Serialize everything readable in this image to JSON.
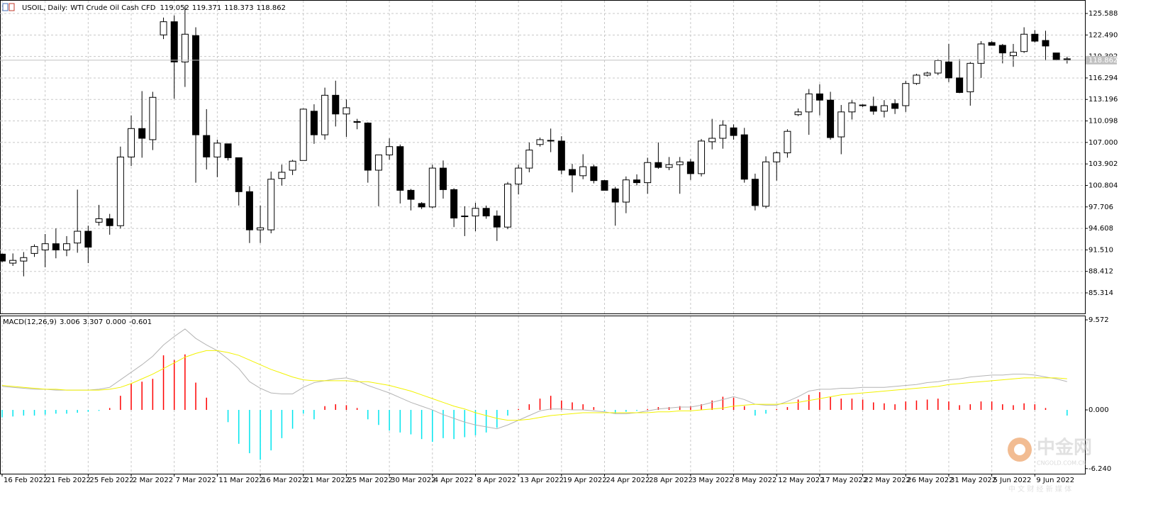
{
  "header": {
    "symbol": "USOIL, Daily:",
    "description": "WTI Crude Oil Cash CFD",
    "ohlc": [
      119.052,
      119.371,
      118.373,
      118.862
    ]
  },
  "chart_data": [
    {
      "type": "candlestick",
      "categories": [
        "16 Feb 2022",
        null,
        null,
        null,
        "21 Feb 2022",
        null,
        null,
        null,
        "25 Feb 2022",
        null,
        null,
        null,
        "2 Mar 2022",
        null,
        null,
        null,
        "7 Mar 2022",
        null,
        null,
        null,
        "11 Mar 2022",
        null,
        null,
        null,
        "16 Mar 2022",
        null,
        null,
        null,
        "21 Mar 2022",
        null,
        null,
        null,
        "25 Mar 2022",
        null,
        null,
        null,
        "30 Mar 2022",
        null,
        null,
        null,
        "4 Apr 2022",
        null,
        null,
        null,
        "8 Apr 2022",
        null,
        null,
        null,
        "13 Apr 2022",
        null,
        null,
        null,
        "19 Apr 2022",
        null,
        null,
        null,
        "24 Apr 2022",
        null,
        null,
        null,
        "28 Apr 2022",
        null,
        null,
        null,
        "3 May 2022",
        null,
        null,
        null,
        "8 May 2022",
        null,
        null,
        null,
        "12 May 2022",
        null,
        null,
        null,
        "17 May 2022",
        null,
        null,
        null,
        "22 May 2022",
        null,
        null,
        null,
        "26 May 2022",
        null,
        null,
        null,
        "31 May 2022",
        null,
        null,
        null,
        "5 Jun 2022",
        null,
        null,
        null,
        "9 Jun 2022",
        null,
        null,
        null
      ],
      "open": [
        90.9,
        89.6,
        89.9,
        91.0,
        91.5,
        92.4,
        91.5,
        92.5,
        94.2,
        95.5,
        96.0,
        95.0,
        104.9,
        109.0,
        107.4,
        122.5,
        124.4,
        118.6,
        122.4,
        108.0,
        104.9,
        106.8,
        104.8,
        99.9,
        94.4,
        94.4,
        101.8,
        103.0,
        104.4,
        111.5,
        108.1,
        113.8,
        111.1,
        110.0,
        109.8,
        103.0,
        105.2,
        106.4,
        100.1,
        98.2,
        97.7,
        103.3,
        100.2,
        96.3,
        96.4,
        97.5,
        96.4,
        94.8,
        101.0,
        103.3,
        106.7,
        107.3,
        107.2,
        103.1,
        102.2,
        103.5,
        101.5,
        100.3,
        98.4,
        101.6,
        101.2,
        104.1,
        103.4,
        103.8,
        104.2,
        102.5,
        107.1,
        107.6,
        109.1,
        108.1,
        101.7,
        97.8,
        104.2,
        105.5,
        111.0,
        111.4,
        114.0,
        113.1,
        107.8,
        111.4,
        112.4,
        112.2,
        111.5,
        112.6,
        112.3,
        115.5,
        116.7,
        117.0,
        118.6,
        116.3,
        114.3,
        118.4,
        121.4,
        121.0,
        119.5,
        120.1,
        122.6,
        121.7,
        119.9,
        119.052
      ],
      "high": [
        91.0,
        91.0,
        91.2,
        92.3,
        93.8,
        94.6,
        93.5,
        100.2,
        95.0,
        98.0,
        96.7,
        106.4,
        110.9,
        114.4,
        114.3,
        125.0,
        125.3,
        126.7,
        123.6,
        111.8,
        107.4,
        106.8,
        104.8,
        100.7,
        97.9,
        102.8,
        103.8,
        104.5,
        111.9,
        112.5,
        114.9,
        115.9,
        113.2,
        110.4,
        109.9,
        105.2,
        107.6,
        106.7,
        100.3,
        98.4,
        103.8,
        104.4,
        100.4,
        97.8,
        98.3,
        97.9,
        97.2,
        101.3,
        103.8,
        107.0,
        107.7,
        109.0,
        107.9,
        103.9,
        105.3,
        103.8,
        101.6,
        100.6,
        102.1,
        102.4,
        104.8,
        107.0,
        104.9,
        104.9,
        104.6,
        107.5,
        110.4,
        110.2,
        109.6,
        109.1,
        102.5,
        105.0,
        105.7,
        108.9,
        111.9,
        114.7,
        115.4,
        114.3,
        112.4,
        113.1,
        112.5,
        113.6,
        113.1,
        113.2,
        115.9,
        116.9,
        117.2,
        119.0,
        121.2,
        119.0,
        118.6,
        121.6,
        121.6,
        121.2,
        121.2,
        123.6,
        123.2,
        123.1,
        119.9,
        119.371
      ],
      "low": [
        89.7,
        89.2,
        87.7,
        90.5,
        89.0,
        90.3,
        90.6,
        91.1,
        89.6,
        95.0,
        93.7,
        94.6,
        103.6,
        104.8,
        105.9,
        121.9,
        113.3,
        115.0,
        101.2,
        103.1,
        102.0,
        104.4,
        97.9,
        92.5,
        92.5,
        93.9,
        100.8,
        102.3,
        104.4,
        106.8,
        107.4,
        109.3,
        107.8,
        108.9,
        101.2,
        97.8,
        104.5,
        98.2,
        97.2,
        97.4,
        97.5,
        98.9,
        94.8,
        93.5,
        94.2,
        96.0,
        92.8,
        94.5,
        99.5,
        102.7,
        106.4,
        105.6,
        102.4,
        99.8,
        101.7,
        101.1,
        100.1,
        95.0,
        96.8,
        100.8,
        99.6,
        103.2,
        103.0,
        99.6,
        101.6,
        102.1,
        106.0,
        106.1,
        107.4,
        101.2,
        97.2,
        97.5,
        101.5,
        104.8,
        110.8,
        108.1,
        110.9,
        107.4,
        105.3,
        110.3,
        112.1,
        111.0,
        110.6,
        111.1,
        111.4,
        115.3,
        116.5,
        116.7,
        115.7,
        114.1,
        112.3,
        116.3,
        121.0,
        118.4,
        117.9,
        119.9,
        121.4,
        118.8,
        118.8,
        118.373
      ],
      "close": [
        89.9,
        90.0,
        90.4,
        92.0,
        92.4,
        91.5,
        92.4,
        94.2,
        91.9,
        96.0,
        95.0,
        104.9,
        109.0,
        107.6,
        113.5,
        124.4,
        118.6,
        122.6,
        108.1,
        104.9,
        106.9,
        104.8,
        99.9,
        94.4,
        94.7,
        101.7,
        102.7,
        104.3,
        111.8,
        108.1,
        113.8,
        111.1,
        112.0,
        109.9,
        103.0,
        105.2,
        106.4,
        100.1,
        98.8,
        97.7,
        103.3,
        100.2,
        96.1,
        96.4,
        97.5,
        96.4,
        94.8,
        101.0,
        103.3,
        105.9,
        107.4,
        107.2,
        103.0,
        102.3,
        103.5,
        101.5,
        100.1,
        98.4,
        101.6,
        101.2,
        104.1,
        103.4,
        103.8,
        104.2,
        102.5,
        107.2,
        107.6,
        109.5,
        108.0,
        101.7,
        97.9,
        104.2,
        105.5,
        108.6,
        111.4,
        114.0,
        113.1,
        107.7,
        111.4,
        112.7,
        112.3,
        111.5,
        112.3,
        111.9,
        115.5,
        116.7,
        117.0,
        118.8,
        116.3,
        114.2,
        118.4,
        121.2,
        121.0,
        119.9,
        120.0,
        122.6,
        121.6,
        120.9,
        118.9,
        118.862
      ],
      "up_color": "#ffffff",
      "down_color": "#000000",
      "ylim": [
        82.35,
        127.43
      ],
      "yticks": [
        125.588,
        {
          "value": 122.49,
          "label": "122.490"
        },
        119.392,
        116.294,
        113.196,
        110.098,
        {
          "value": 107,
          "label": "107.000"
        },
        103.902,
        100.804,
        97.706,
        94.608,
        {
          "value": 91.51,
          "label": "91.510"
        },
        88.412,
        85.314
      ],
      "current_price": 118.862,
      "grid": true
    },
    {
      "type": "macd",
      "title": "MACD(12,26,9)",
      "readout": [
        3.006,
        3.307,
        {
          "value": 0,
          "label": "0.000"
        },
        -0.601
      ],
      "series": [
        {
          "kind": "histogram",
          "up_color": "#ff0000",
          "down_color": "#00e5ee",
          "values": [
            -0.8,
            -0.7,
            -0.6,
            -0.6,
            -0.5,
            -0.4,
            -0.4,
            -0.3,
            -0.2,
            -0.1,
            0.2,
            1.5,
            2.8,
            3.0,
            3.3,
            5.8,
            5.3,
            5.9,
            2.9,
            1.3,
            0,
            -1.3,
            -3.6,
            -4.6,
            -5.3,
            -4.3,
            -3.0,
            -2.0,
            -0.4,
            -1.0,
            0.4,
            0.6,
            0.5,
            0.2,
            -1.0,
            -1.6,
            -2.2,
            -2.4,
            -2.6,
            -3.1,
            -3.4,
            -3.0,
            -3.1,
            -2.9,
            -2.7,
            -2.4,
            -1.9,
            -0.6,
            0.1,
            0.6,
            1.2,
            1.5,
            1.0,
            0.8,
            0.6,
            0.3,
            -0.1,
            -0.4,
            -0.2,
            -0.1,
            0.1,
            0.3,
            0.3,
            0.4,
            0.4,
            0.6,
            1.0,
            1.4,
            1.3,
            0.4,
            -0.6,
            -0.4,
            0.1,
            0.3,
            1.1,
            1.6,
            1.9,
            1.4,
            1.2,
            1.2,
            1.1,
            0.8,
            0.7,
            0.6,
            0.9,
            1.0,
            1.1,
            1.2,
            0.9,
            0.5,
            0.6,
            0.9,
            0.9,
            0.6,
            0.5,
            0.7,
            0.6,
            0.2,
            0,
            -0.601
          ]
        },
        {
          "kind": "line",
          "color": "#b4b4b4",
          "values": [
            2.5,
            2.4,
            2.3,
            2.2,
            2.2,
            2.1,
            2.1,
            2.1,
            2.1,
            2.2,
            2.4,
            3.2,
            4.0,
            4.8,
            5.7,
            6.9,
            7.8,
            8.6,
            7.6,
            6.9,
            6.3,
            5.4,
            4.4,
            3.0,
            2.3,
            1.8,
            1.7,
            1.7,
            2.4,
            2.9,
            3.1,
            3.3,
            3.4,
            3.1,
            2.6,
            2.2,
            1.8,
            1.3,
            0.8,
            0.4,
            0.0,
            -0.5,
            -0.9,
            -1.3,
            -1.6,
            -1.8,
            -2.0,
            -1.6,
            -1.1,
            -0.6,
            -0.1,
            0.1,
            0.1,
            0.0,
            0.0,
            -0.1,
            -0.2,
            -0.4,
            -0.4,
            -0.3,
            -0.1,
            0.1,
            0.2,
            0.3,
            0.3,
            0.5,
            0.8,
            1.1,
            1.4,
            1.1,
            0.6,
            0.5,
            0.5,
            0.9,
            1.4,
            2.0,
            2.2,
            2.2,
            2.3,
            2.3,
            2.4,
            2.4,
            2.4,
            2.5,
            2.6,
            2.7,
            2.9,
            3.0,
            3.2,
            3.3,
            3.5,
            3.6,
            3.7,
            3.7,
            3.8,
            3.8,
            3.7,
            3.5,
            3.3,
            3.006
          ]
        },
        {
          "kind": "line",
          "color": "#f2f200",
          "values": [
            2.6,
            2.5,
            2.4,
            2.3,
            2.2,
            2.2,
            2.1,
            2.1,
            2.1,
            2.1,
            2.2,
            2.4,
            2.8,
            3.3,
            3.8,
            4.4,
            5.0,
            5.6,
            6.0,
            6.3,
            6.3,
            6.1,
            5.8,
            5.3,
            4.8,
            4.3,
            3.9,
            3.5,
            3.2,
            3.1,
            3.1,
            3.1,
            3.1,
            3.0,
            3.0,
            2.8,
            2.6,
            2.3,
            2.0,
            1.6,
            1.2,
            0.8,
            0.4,
            0.1,
            -0.3,
            -0.6,
            -0.9,
            -1.1,
            -1.1,
            -1.0,
            -0.8,
            -0.6,
            -0.5,
            -0.4,
            -0.3,
            -0.3,
            -0.3,
            -0.3,
            -0.3,
            -0.3,
            -0.3,
            -0.2,
            -0.2,
            -0.1,
            -0.1,
            0.0,
            0.1,
            0.2,
            0.4,
            0.5,
            0.6,
            0.6,
            0.6,
            0.7,
            0.8,
            1.0,
            1.2,
            1.4,
            1.6,
            1.7,
            1.8,
            1.9,
            2.0,
            2.1,
            2.2,
            2.3,
            2.4,
            2.5,
            2.7,
            2.8,
            2.9,
            3.0,
            3.1,
            3.2,
            3.3,
            3.4,
            3.4,
            3.4,
            3.4,
            3.307
          ]
        }
      ],
      "ylim": [
        -6.78,
        9.95
      ],
      "yticks": [
        9.572,
        {
          "value": 0,
          "label": "0.000"
        },
        {
          "value": -6.24,
          "label": "-6.240"
        }
      ]
    }
  ],
  "watermark": {
    "logo_text": "中金网",
    "site": "CNGOLD.COM.CN",
    "slogan": "中 文 财 经 新 媒 体"
  }
}
